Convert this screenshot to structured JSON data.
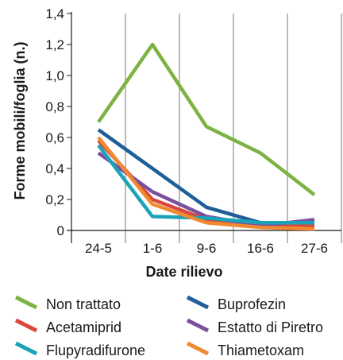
{
  "chart_data": {
    "type": "line",
    "xlabel": "Date rilievo",
    "ylabel": "Forme mobili/foglia (n.)",
    "categories": [
      "24-5",
      "1-6",
      "9-6",
      "16-6",
      "27-6"
    ],
    "y_ticks": [
      "0",
      "0,2",
      "0,4",
      "0,6",
      "0,8",
      "1,0",
      "1,2",
      "1,4"
    ],
    "ylim": [
      0,
      1.4
    ],
    "grid": "vertical",
    "legend_position": "bottom",
    "series": [
      {
        "name": "Non trattato",
        "color": "#7cb342",
        "values": [
          0.7,
          1.2,
          0.67,
          0.5,
          0.23
        ]
      },
      {
        "name": "Buprofezin",
        "color": "#1f5f99",
        "values": [
          0.65,
          0.4,
          0.15,
          0.05,
          0.03
        ]
      },
      {
        "name": "Acetamiprid",
        "color": "#d9473d",
        "values": [
          0.58,
          0.2,
          0.07,
          0.03,
          0.03
        ]
      },
      {
        "name": "Estatto di Piretro",
        "color": "#7b4f9e",
        "values": [
          0.5,
          0.25,
          0.09,
          0.03,
          0.07
        ]
      },
      {
        "name": "Flupyradifurone",
        "color": "#1aa3b8",
        "values": [
          0.55,
          0.09,
          0.08,
          0.05,
          0.05
        ]
      },
      {
        "name": "Thiametoxam",
        "color": "#f08a30",
        "values": [
          0.6,
          0.17,
          0.05,
          0.02,
          0.01
        ]
      }
    ]
  }
}
